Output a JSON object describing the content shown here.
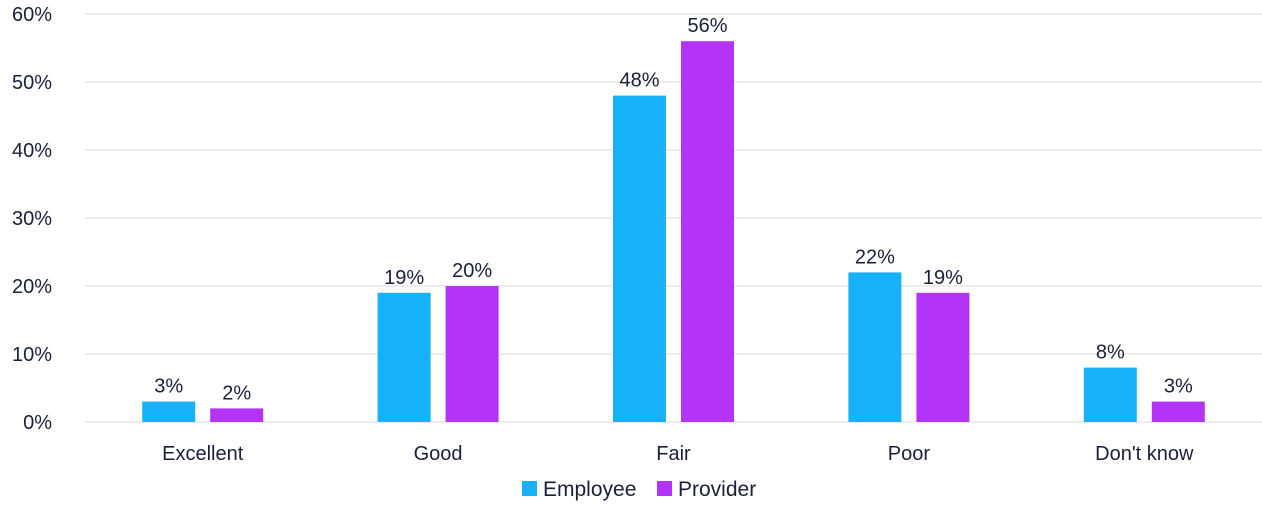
{
  "chart_data": {
    "type": "bar",
    "categories": [
      "Excellent",
      "Good",
      "Fair",
      "Poor",
      "Don't know"
    ],
    "series": [
      {
        "name": "Employee",
        "values": [
          3,
          19,
          48,
          22,
          8
        ],
        "labels": [
          "3%",
          "19%",
          "48%",
          "22%",
          "8%"
        ],
        "color": "#16b1f9"
      },
      {
        "name": "Provider",
        "values": [
          2,
          20,
          56,
          19,
          3
        ],
        "labels": [
          "2%",
          "20%",
          "56%",
          "19%",
          "3%"
        ],
        "color": "#b333f7"
      }
    ],
    "ylim": [
      0,
      60
    ],
    "yticks": [
      0,
      10,
      20,
      30,
      40,
      50,
      60
    ],
    "ytick_labels": [
      "0%",
      "10%",
      "20%",
      "30%",
      "40%",
      "50%",
      "60%"
    ],
    "grid": true,
    "legend_position": "bottom"
  }
}
